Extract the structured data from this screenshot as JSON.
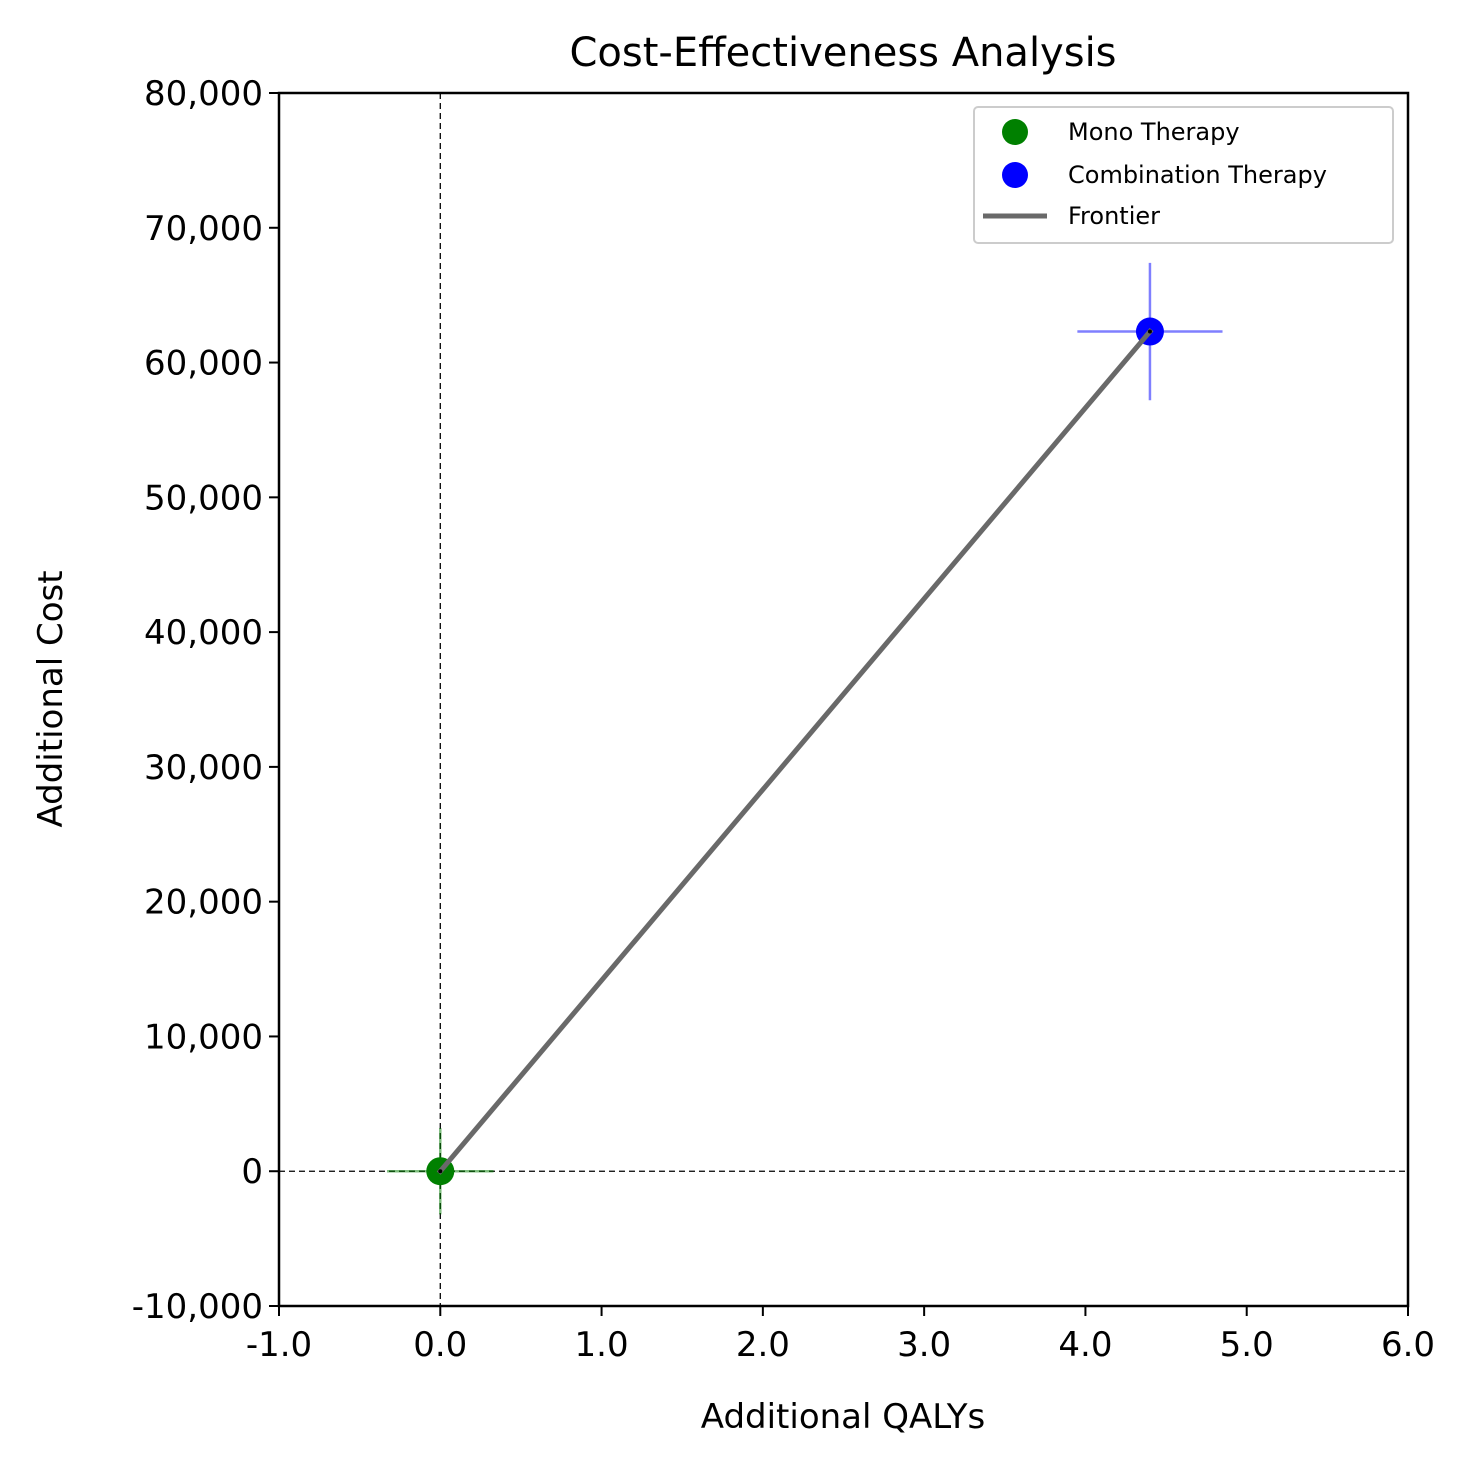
{
  "chart_data": {
    "type": "scatter",
    "title": "Cost-Effectiveness Analysis",
    "xlabel": "Additional QALYs",
    "ylabel": "Additional Cost",
    "xlim": [
      -1.0,
      6.0
    ],
    "ylim": [
      -10000,
      80000
    ],
    "x_ticks": [
      -1.0,
      0.0,
      1.0,
      2.0,
      3.0,
      4.0,
      5.0,
      6.0
    ],
    "x_tick_labels": [
      "-1.0",
      "0.0",
      "1.0",
      "2.0",
      "3.0",
      "4.0",
      "5.0",
      "6.0"
    ],
    "y_ticks": [
      -10000,
      0,
      10000,
      20000,
      30000,
      40000,
      50000,
      60000,
      70000,
      80000
    ],
    "y_tick_labels": [
      "-10,000",
      "0",
      "10,000",
      "20,000",
      "30,000",
      "40,000",
      "50,000",
      "60,000",
      "70,000",
      "80,000"
    ],
    "grid": false,
    "reference_lines": {
      "x": 0,
      "y": 0,
      "style": "dashed"
    },
    "legend_position": "top-right",
    "series": [
      {
        "name": "Mono Therapy",
        "color": "#008000",
        "points": [
          {
            "x": 0.0,
            "y": 0,
            "x_error": 0.33,
            "y_error": 3200
          }
        ]
      },
      {
        "name": "Combination Therapy",
        "color": "#0000ff",
        "points": [
          {
            "x": 4.4,
            "y": 62300,
            "x_error": 0.45,
            "y_error": 5100
          }
        ]
      }
    ],
    "frontier": {
      "name": "Frontier",
      "color": "#696969",
      "points": [
        {
          "x": 0.0,
          "y": 0
        },
        {
          "x": 4.4,
          "y": 62300
        }
      ]
    }
  }
}
